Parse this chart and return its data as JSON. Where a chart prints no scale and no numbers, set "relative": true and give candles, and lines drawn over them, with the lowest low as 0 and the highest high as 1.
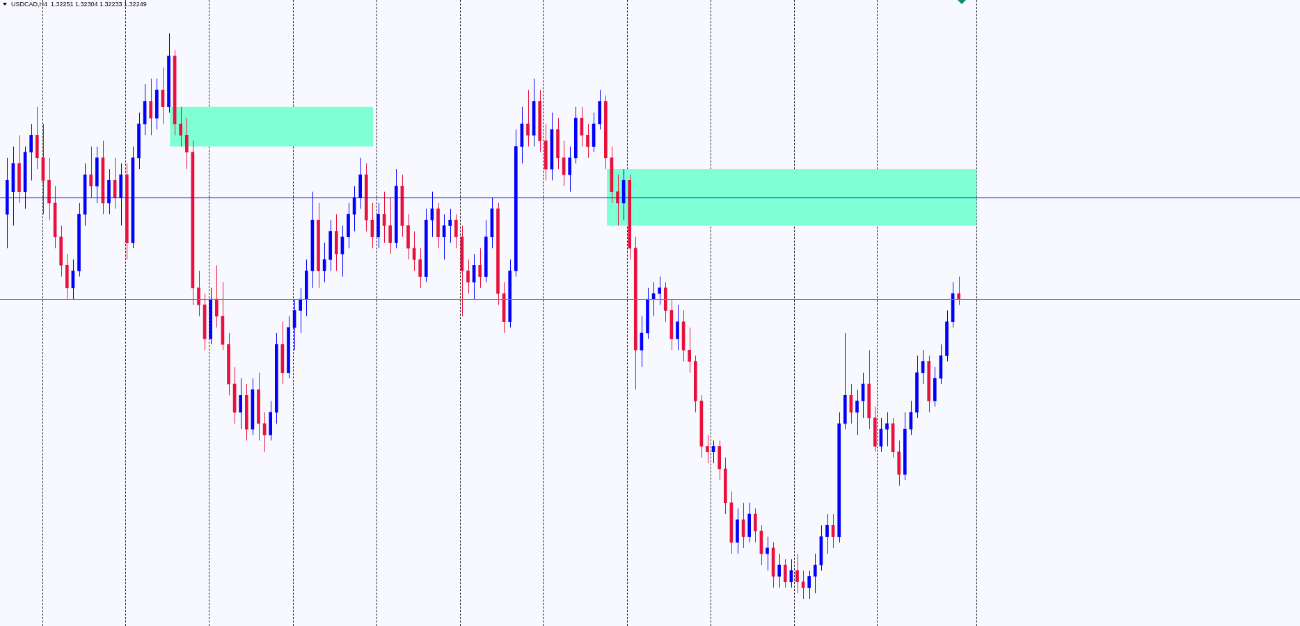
{
  "chart_data": {
    "type": "candlestick",
    "title": "USDCAD,H4  1.32251 1.32304 1.32233 1.32249",
    "relative": true,
    "categories": [
      null,
      null,
      null,
      null,
      null,
      null,
      null,
      null,
      null,
      null,
      null,
      null,
      null,
      null,
      null,
      null,
      null,
      null,
      null,
      null,
      null,
      null,
      null,
      null,
      null,
      null,
      null,
      null,
      null,
      null,
      null,
      null,
      null,
      null,
      null,
      null,
      null,
      null,
      null,
      null,
      null,
      null,
      null,
      null,
      null,
      null,
      null,
      null,
      null,
      null,
      null,
      null,
      null,
      null,
      null,
      null,
      null,
      null,
      null,
      null,
      null,
      null,
      null,
      null,
      null,
      null,
      null,
      null,
      null,
      null,
      null,
      null,
      null,
      null,
      null,
      null,
      null,
      null,
      null,
      null,
      null,
      null,
      null,
      null,
      null,
      null,
      null,
      null,
      null,
      null,
      null,
      null,
      null,
      null,
      null,
      null,
      null,
      null,
      null,
      null,
      null,
      null,
      null,
      null,
      null,
      null,
      null,
      null,
      null,
      null,
      null,
      null,
      null,
      null,
      null,
      null,
      null,
      null,
      null,
      null,
      null,
      null,
      null,
      null,
      null,
      null,
      null,
      null,
      null,
      null,
      null,
      null,
      null,
      null,
      null,
      null,
      null,
      null,
      null,
      null,
      null,
      null,
      null,
      null,
      null,
      null,
      null,
      null,
      null,
      null,
      null,
      null,
      null,
      null,
      null,
      null,
      null,
      null,
      null,
      null
    ],
    "ohlc": [
      [
        0.68,
        0.78,
        0.62,
        0.74
      ],
      [
        0.72,
        0.8,
        0.66,
        0.77
      ],
      [
        0.77,
        0.82,
        0.7,
        0.72
      ],
      [
        0.72,
        0.8,
        0.69,
        0.79
      ],
      [
        0.79,
        0.84,
        0.74,
        0.82
      ],
      [
        0.82,
        0.87,
        0.76,
        0.78
      ],
      [
        0.78,
        0.84,
        0.68,
        0.74
      ],
      [
        0.74,
        0.78,
        0.67,
        0.7
      ],
      [
        0.7,
        0.73,
        0.62,
        0.64
      ],
      [
        0.64,
        0.66,
        0.57,
        0.59
      ],
      [
        0.59,
        0.61,
        0.53,
        0.55
      ],
      [
        0.55,
        0.6,
        0.53,
        0.58
      ],
      [
        0.58,
        0.7,
        0.57,
        0.68
      ],
      [
        0.68,
        0.77,
        0.66,
        0.75
      ],
      [
        0.75,
        0.8,
        0.71,
        0.73
      ],
      [
        0.73,
        0.8,
        0.7,
        0.78
      ],
      [
        0.78,
        0.81,
        0.68,
        0.7
      ],
      [
        0.7,
        0.76,
        0.68,
        0.74
      ],
      [
        0.74,
        0.78,
        0.69,
        0.71
      ],
      [
        0.71,
        0.77,
        0.66,
        0.75
      ],
      [
        0.75,
        0.77,
        0.6,
        0.63
      ],
      [
        0.63,
        0.8,
        0.62,
        0.78
      ],
      [
        0.78,
        0.86,
        0.76,
        0.84
      ],
      [
        0.84,
        0.91,
        0.82,
        0.88
      ],
      [
        0.88,
        0.92,
        0.82,
        0.85
      ],
      [
        0.85,
        0.92,
        0.83,
        0.9
      ],
      [
        0.9,
        0.94,
        0.84,
        0.87
      ],
      [
        0.87,
        1.0,
        0.86,
        0.96
      ],
      [
        0.96,
        0.97,
        0.82,
        0.84
      ],
      [
        0.84,
        0.87,
        0.8,
        0.82
      ],
      [
        0.82,
        0.85,
        0.76,
        0.79
      ],
      [
        0.79,
        0.81,
        0.52,
        0.55
      ],
      [
        0.55,
        0.58,
        0.5,
        0.52
      ],
      [
        0.52,
        0.54,
        0.44,
        0.46
      ],
      [
        0.46,
        0.55,
        0.45,
        0.53
      ],
      [
        0.53,
        0.59,
        0.48,
        0.5
      ],
      [
        0.5,
        0.56,
        0.44,
        0.45
      ],
      [
        0.45,
        0.47,
        0.36,
        0.38
      ],
      [
        0.38,
        0.41,
        0.31,
        0.33
      ],
      [
        0.33,
        0.39,
        0.3,
        0.36
      ],
      [
        0.36,
        0.38,
        0.28,
        0.3
      ],
      [
        0.3,
        0.39,
        0.29,
        0.37
      ],
      [
        0.37,
        0.4,
        0.28,
        0.31
      ],
      [
        0.31,
        0.33,
        0.26,
        0.29
      ],
      [
        0.29,
        0.35,
        0.28,
        0.33
      ],
      [
        0.33,
        0.47,
        0.31,
        0.45
      ],
      [
        0.45,
        0.49,
        0.38,
        0.4
      ],
      [
        0.4,
        0.5,
        0.39,
        0.48
      ],
      [
        0.48,
        0.53,
        0.44,
        0.51
      ],
      [
        0.51,
        0.55,
        0.47,
        0.53
      ],
      [
        0.53,
        0.6,
        0.5,
        0.58
      ],
      [
        0.58,
        0.72,
        0.55,
        0.67
      ],
      [
        0.67,
        0.7,
        0.55,
        0.58
      ],
      [
        0.58,
        0.63,
        0.56,
        0.6
      ],
      [
        0.6,
        0.67,
        0.58,
        0.65
      ],
      [
        0.65,
        0.68,
        0.58,
        0.61
      ],
      [
        0.61,
        0.66,
        0.57,
        0.64
      ],
      [
        0.64,
        0.7,
        0.62,
        0.68
      ],
      [
        0.68,
        0.73,
        0.65,
        0.71
      ],
      [
        0.71,
        0.78,
        0.69,
        0.75
      ],
      [
        0.75,
        0.77,
        0.65,
        0.67
      ],
      [
        0.67,
        0.7,
        0.62,
        0.64
      ],
      [
        0.64,
        0.7,
        0.62,
        0.68
      ],
      [
        0.68,
        0.72,
        0.63,
        0.66
      ],
      [
        0.66,
        0.71,
        0.61,
        0.63
      ],
      [
        0.63,
        0.76,
        0.62,
        0.73
      ],
      [
        0.73,
        0.75,
        0.64,
        0.66
      ],
      [
        0.66,
        0.68,
        0.6,
        0.62
      ],
      [
        0.62,
        0.65,
        0.58,
        0.6
      ],
      [
        0.6,
        0.62,
        0.55,
        0.57
      ],
      [
        0.57,
        0.69,
        0.56,
        0.67
      ],
      [
        0.67,
        0.72,
        0.64,
        0.69
      ],
      [
        0.69,
        0.7,
        0.62,
        0.64
      ],
      [
        0.64,
        0.68,
        0.6,
        0.66
      ],
      [
        0.66,
        0.69,
        0.63,
        0.67
      ],
      [
        0.67,
        0.68,
        0.62,
        0.64
      ],
      [
        0.64,
        0.66,
        0.5,
        0.58
      ],
      [
        0.58,
        0.6,
        0.54,
        0.56
      ],
      [
        0.56,
        0.61,
        0.53,
        0.59
      ],
      [
        0.59,
        0.62,
        0.55,
        0.57
      ],
      [
        0.57,
        0.67,
        0.56,
        0.64
      ],
      [
        0.64,
        0.71,
        0.62,
        0.69
      ],
      [
        0.69,
        0.7,
        0.52,
        0.54
      ],
      [
        0.54,
        0.56,
        0.47,
        0.49
      ],
      [
        0.49,
        0.6,
        0.48,
        0.58
      ],
      [
        0.58,
        0.83,
        0.57,
        0.8
      ],
      [
        0.8,
        0.87,
        0.77,
        0.84
      ],
      [
        0.84,
        0.9,
        0.8,
        0.82
      ],
      [
        0.82,
        0.92,
        0.8,
        0.88
      ],
      [
        0.88,
        0.9,
        0.79,
        0.81
      ],
      [
        0.81,
        0.84,
        0.74,
        0.76
      ],
      [
        0.76,
        0.86,
        0.74,
        0.83
      ],
      [
        0.83,
        0.85,
        0.76,
        0.78
      ],
      [
        0.78,
        0.81,
        0.73,
        0.75
      ],
      [
        0.75,
        0.8,
        0.72,
        0.78
      ],
      [
        0.78,
        0.87,
        0.77,
        0.85
      ],
      [
        0.85,
        0.87,
        0.8,
        0.82
      ],
      [
        0.82,
        0.84,
        0.78,
        0.8
      ],
      [
        0.8,
        0.86,
        0.79,
        0.84
      ],
      [
        0.84,
        0.9,
        0.83,
        0.88
      ],
      [
        0.88,
        0.89,
        0.76,
        0.78
      ],
      [
        0.78,
        0.8,
        0.7,
        0.72
      ],
      [
        0.72,
        0.75,
        0.66,
        0.7
      ],
      [
        0.7,
        0.76,
        0.67,
        0.74
      ],
      [
        0.74,
        0.75,
        0.6,
        0.62
      ],
      [
        0.62,
        0.64,
        0.37,
        0.44
      ],
      [
        0.44,
        0.5,
        0.41,
        0.47
      ],
      [
        0.47,
        0.55,
        0.46,
        0.53
      ],
      [
        0.53,
        0.56,
        0.5,
        0.54
      ],
      [
        0.54,
        0.57,
        0.52,
        0.55
      ],
      [
        0.55,
        0.56,
        0.49,
        0.51
      ],
      [
        0.51,
        0.53,
        0.44,
        0.46
      ],
      [
        0.46,
        0.52,
        0.44,
        0.49
      ],
      [
        0.49,
        0.51,
        0.42,
        0.44
      ],
      [
        0.44,
        0.48,
        0.4,
        0.42
      ],
      [
        0.42,
        0.43,
        0.33,
        0.35
      ],
      [
        0.35,
        0.36,
        0.25,
        0.27
      ],
      [
        0.27,
        0.29,
        0.24,
        0.26
      ],
      [
        0.26,
        0.28,
        0.24,
        0.27
      ],
      [
        0.27,
        0.28,
        0.21,
        0.23
      ],
      [
        0.23,
        0.25,
        0.15,
        0.17
      ],
      [
        0.17,
        0.19,
        0.08,
        0.1
      ],
      [
        0.1,
        0.16,
        0.08,
        0.14
      ],
      [
        0.14,
        0.17,
        0.09,
        0.11
      ],
      [
        0.11,
        0.17,
        0.1,
        0.15
      ],
      [
        0.15,
        0.16,
        0.1,
        0.12
      ],
      [
        0.12,
        0.13,
        0.06,
        0.08
      ],
      [
        0.08,
        0.11,
        0.05,
        0.09
      ],
      [
        0.09,
        0.1,
        0.02,
        0.04
      ],
      [
        0.04,
        0.08,
        0.02,
        0.06
      ],
      [
        0.06,
        0.07,
        0.02,
        0.03
      ],
      [
        0.03,
        0.07,
        0.02,
        0.05
      ],
      [
        0.05,
        0.08,
        0.01,
        0.03
      ],
      [
        0.03,
        0.05,
        0.0,
        0.02
      ],
      [
        0.02,
        0.05,
        0.0,
        0.04
      ],
      [
        0.04,
        0.08,
        0.01,
        0.06
      ],
      [
        0.06,
        0.13,
        0.05,
        0.11
      ],
      [
        0.11,
        0.15,
        0.08,
        0.13
      ],
      [
        0.13,
        0.15,
        0.09,
        0.11
      ],
      [
        0.11,
        0.33,
        0.1,
        0.31
      ],
      [
        0.31,
        0.47,
        0.3,
        0.36
      ],
      [
        0.36,
        0.38,
        0.31,
        0.33
      ],
      [
        0.33,
        0.37,
        0.29,
        0.35
      ],
      [
        0.35,
        0.4,
        0.32,
        0.38
      ],
      [
        0.38,
        0.44,
        0.3,
        0.32
      ],
      [
        0.32,
        0.34,
        0.26,
        0.27
      ],
      [
        0.27,
        0.32,
        0.26,
        0.3
      ],
      [
        0.3,
        0.33,
        0.27,
        0.31
      ],
      [
        0.31,
        0.32,
        0.25,
        0.26
      ],
      [
        0.26,
        0.28,
        0.2,
        0.22
      ],
      [
        0.22,
        0.33,
        0.21,
        0.3
      ],
      [
        0.3,
        0.35,
        0.29,
        0.33
      ],
      [
        0.33,
        0.43,
        0.32,
        0.4
      ],
      [
        0.4,
        0.44,
        0.38,
        0.42
      ],
      [
        0.42,
        0.43,
        0.33,
        0.35
      ],
      [
        0.35,
        0.41,
        0.34,
        0.39
      ],
      [
        0.39,
        0.45,
        0.38,
        0.43
      ],
      [
        0.43,
        0.51,
        0.42,
        0.49
      ],
      [
        0.49,
        0.56,
        0.48,
        0.54
      ],
      [
        0.54,
        0.57,
        0.52,
        0.53
      ]
    ],
    "colors": [
      "#0000ff",
      "#0000ff",
      "#e8103c",
      "#0000ff",
      "#0000ff",
      "#e8103c",
      "#e8103c",
      "#e8103c",
      "#e8103c",
      "#e8103c",
      "#e8103c",
      "#0000ff",
      "#0000ff",
      "#0000ff",
      "#e8103c",
      "#0000ff",
      "#e8103c",
      "#0000ff",
      "#e8103c",
      "#0000ff",
      "#e8103c",
      "#0000ff",
      "#0000ff",
      "#0000ff",
      "#e8103c",
      "#0000ff",
      "#e8103c",
      "#0000ff",
      "#e8103c",
      "#e8103c",
      "#e8103c",
      "#e8103c",
      "#e8103c",
      "#e8103c",
      "#0000ff",
      "#e8103c",
      "#e8103c",
      "#e8103c",
      "#e8103c",
      "#0000ff",
      "#e8103c",
      "#0000ff",
      "#e8103c",
      "#e8103c",
      "#0000ff",
      "#0000ff",
      "#e8103c",
      "#0000ff",
      "#0000ff",
      "#0000ff",
      "#0000ff",
      "#0000ff",
      "#e8103c",
      "#0000ff",
      "#0000ff",
      "#e8103c",
      "#0000ff",
      "#0000ff",
      "#0000ff",
      "#0000ff",
      "#e8103c",
      "#e8103c",
      "#0000ff",
      "#e8103c",
      "#e8103c",
      "#0000ff",
      "#e8103c",
      "#e8103c",
      "#e8103c",
      "#e8103c",
      "#0000ff",
      "#0000ff",
      "#e8103c",
      "#0000ff",
      "#0000ff",
      "#e8103c",
      "#e8103c",
      "#e8103c",
      "#0000ff",
      "#e8103c",
      "#0000ff",
      "#0000ff",
      "#e8103c",
      "#e8103c",
      "#0000ff",
      "#0000ff",
      "#0000ff",
      "#e8103c",
      "#0000ff",
      "#e8103c",
      "#e8103c",
      "#0000ff",
      "#e8103c",
      "#e8103c",
      "#0000ff",
      "#0000ff",
      "#e8103c",
      "#e8103c",
      "#0000ff",
      "#0000ff",
      "#e8103c",
      "#e8103c",
      "#e8103c",
      "#0000ff",
      "#e8103c",
      "#e8103c",
      "#0000ff",
      "#0000ff",
      "#0000ff",
      "#0000ff",
      "#e8103c",
      "#e8103c",
      "#0000ff",
      "#e8103c",
      "#e8103c",
      "#e8103c",
      "#e8103c",
      "#e8103c",
      "#0000ff",
      "#e8103c",
      "#e8103c",
      "#e8103c",
      "#0000ff",
      "#e8103c",
      "#0000ff",
      "#e8103c",
      "#e8103c",
      "#0000ff",
      "#e8103c",
      "#0000ff",
      "#e8103c",
      "#0000ff",
      "#e8103c",
      "#e8103c",
      "#0000ff",
      "#0000ff",
      "#0000ff",
      "#0000ff",
      "#e8103c",
      "#0000ff",
      "#0000ff",
      "#e8103c",
      "#0000ff",
      "#0000ff",
      "#e8103c",
      "#e8103c",
      "#0000ff",
      "#0000ff",
      "#e8103c",
      "#e8103c",
      "#0000ff",
      "#0000ff",
      "#0000ff",
      "#0000ff",
      "#e8103c",
      "#0000ff",
      "#0000ff",
      "#0000ff",
      "#0000ff",
      "#e8103c"
    ],
    "bands": [
      {
        "axis": "y",
        "from": 0.8,
        "to": 0.87,
        "color": "#7fffd4"
      },
      {
        "axis": "y",
        "from": 0.66,
        "to": 0.76,
        "color": "#7fffd4"
      }
    ],
    "ref_lines": [
      {
        "axis": "y",
        "value": 0.53,
        "color": "#2a9d8f"
      },
      {
        "axis": "y",
        "value": 0.71,
        "color": "#0000ff"
      }
    ]
  }
}
